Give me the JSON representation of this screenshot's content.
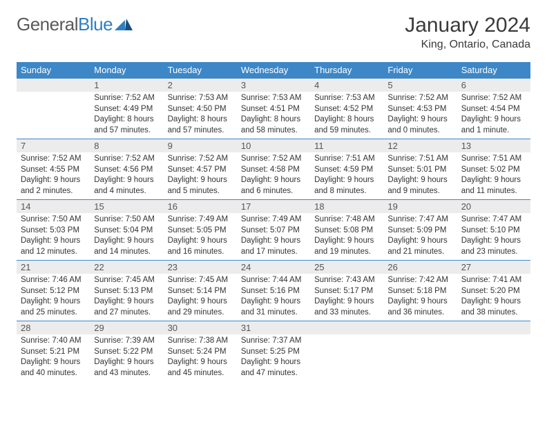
{
  "brand": {
    "part1": "General",
    "part2": "Blue"
  },
  "title": "January 2024",
  "location": "King, Ontario, Canada",
  "colors": {
    "header_bg": "#3d87c7",
    "header_text": "#ffffff",
    "daynum_bg": "#ececec",
    "border": "#3d87c7",
    "text": "#333333"
  },
  "day_headers": [
    "Sunday",
    "Monday",
    "Tuesday",
    "Wednesday",
    "Thursday",
    "Friday",
    "Saturday"
  ],
  "weeks": [
    {
      "nums": [
        "",
        "1",
        "2",
        "3",
        "4",
        "5",
        "6"
      ],
      "cells": [
        {
          "sunrise": "",
          "sunset": "",
          "daylight": ""
        },
        {
          "sunrise": "Sunrise: 7:52 AM",
          "sunset": "Sunset: 4:49 PM",
          "daylight": "Daylight: 8 hours and 57 minutes."
        },
        {
          "sunrise": "Sunrise: 7:53 AM",
          "sunset": "Sunset: 4:50 PM",
          "daylight": "Daylight: 8 hours and 57 minutes."
        },
        {
          "sunrise": "Sunrise: 7:53 AM",
          "sunset": "Sunset: 4:51 PM",
          "daylight": "Daylight: 8 hours and 58 minutes."
        },
        {
          "sunrise": "Sunrise: 7:53 AM",
          "sunset": "Sunset: 4:52 PM",
          "daylight": "Daylight: 8 hours and 59 minutes."
        },
        {
          "sunrise": "Sunrise: 7:52 AM",
          "sunset": "Sunset: 4:53 PM",
          "daylight": "Daylight: 9 hours and 0 minutes."
        },
        {
          "sunrise": "Sunrise: 7:52 AM",
          "sunset": "Sunset: 4:54 PM",
          "daylight": "Daylight: 9 hours and 1 minute."
        }
      ]
    },
    {
      "nums": [
        "7",
        "8",
        "9",
        "10",
        "11",
        "12",
        "13"
      ],
      "cells": [
        {
          "sunrise": "Sunrise: 7:52 AM",
          "sunset": "Sunset: 4:55 PM",
          "daylight": "Daylight: 9 hours and 2 minutes."
        },
        {
          "sunrise": "Sunrise: 7:52 AM",
          "sunset": "Sunset: 4:56 PM",
          "daylight": "Daylight: 9 hours and 4 minutes."
        },
        {
          "sunrise": "Sunrise: 7:52 AM",
          "sunset": "Sunset: 4:57 PM",
          "daylight": "Daylight: 9 hours and 5 minutes."
        },
        {
          "sunrise": "Sunrise: 7:52 AM",
          "sunset": "Sunset: 4:58 PM",
          "daylight": "Daylight: 9 hours and 6 minutes."
        },
        {
          "sunrise": "Sunrise: 7:51 AM",
          "sunset": "Sunset: 4:59 PM",
          "daylight": "Daylight: 9 hours and 8 minutes."
        },
        {
          "sunrise": "Sunrise: 7:51 AM",
          "sunset": "Sunset: 5:01 PM",
          "daylight": "Daylight: 9 hours and 9 minutes."
        },
        {
          "sunrise": "Sunrise: 7:51 AM",
          "sunset": "Sunset: 5:02 PM",
          "daylight": "Daylight: 9 hours and 11 minutes."
        }
      ]
    },
    {
      "nums": [
        "14",
        "15",
        "16",
        "17",
        "18",
        "19",
        "20"
      ],
      "cells": [
        {
          "sunrise": "Sunrise: 7:50 AM",
          "sunset": "Sunset: 5:03 PM",
          "daylight": "Daylight: 9 hours and 12 minutes."
        },
        {
          "sunrise": "Sunrise: 7:50 AM",
          "sunset": "Sunset: 5:04 PM",
          "daylight": "Daylight: 9 hours and 14 minutes."
        },
        {
          "sunrise": "Sunrise: 7:49 AM",
          "sunset": "Sunset: 5:05 PM",
          "daylight": "Daylight: 9 hours and 16 minutes."
        },
        {
          "sunrise": "Sunrise: 7:49 AM",
          "sunset": "Sunset: 5:07 PM",
          "daylight": "Daylight: 9 hours and 17 minutes."
        },
        {
          "sunrise": "Sunrise: 7:48 AM",
          "sunset": "Sunset: 5:08 PM",
          "daylight": "Daylight: 9 hours and 19 minutes."
        },
        {
          "sunrise": "Sunrise: 7:47 AM",
          "sunset": "Sunset: 5:09 PM",
          "daylight": "Daylight: 9 hours and 21 minutes."
        },
        {
          "sunrise": "Sunrise: 7:47 AM",
          "sunset": "Sunset: 5:10 PM",
          "daylight": "Daylight: 9 hours and 23 minutes."
        }
      ]
    },
    {
      "nums": [
        "21",
        "22",
        "23",
        "24",
        "25",
        "26",
        "27"
      ],
      "cells": [
        {
          "sunrise": "Sunrise: 7:46 AM",
          "sunset": "Sunset: 5:12 PM",
          "daylight": "Daylight: 9 hours and 25 minutes."
        },
        {
          "sunrise": "Sunrise: 7:45 AM",
          "sunset": "Sunset: 5:13 PM",
          "daylight": "Daylight: 9 hours and 27 minutes."
        },
        {
          "sunrise": "Sunrise: 7:45 AM",
          "sunset": "Sunset: 5:14 PM",
          "daylight": "Daylight: 9 hours and 29 minutes."
        },
        {
          "sunrise": "Sunrise: 7:44 AM",
          "sunset": "Sunset: 5:16 PM",
          "daylight": "Daylight: 9 hours and 31 minutes."
        },
        {
          "sunrise": "Sunrise: 7:43 AM",
          "sunset": "Sunset: 5:17 PM",
          "daylight": "Daylight: 9 hours and 33 minutes."
        },
        {
          "sunrise": "Sunrise: 7:42 AM",
          "sunset": "Sunset: 5:18 PM",
          "daylight": "Daylight: 9 hours and 36 minutes."
        },
        {
          "sunrise": "Sunrise: 7:41 AM",
          "sunset": "Sunset: 5:20 PM",
          "daylight": "Daylight: 9 hours and 38 minutes."
        }
      ]
    },
    {
      "nums": [
        "28",
        "29",
        "30",
        "31",
        "",
        "",
        ""
      ],
      "cells": [
        {
          "sunrise": "Sunrise: 7:40 AM",
          "sunset": "Sunset: 5:21 PM",
          "daylight": "Daylight: 9 hours and 40 minutes."
        },
        {
          "sunrise": "Sunrise: 7:39 AM",
          "sunset": "Sunset: 5:22 PM",
          "daylight": "Daylight: 9 hours and 43 minutes."
        },
        {
          "sunrise": "Sunrise: 7:38 AM",
          "sunset": "Sunset: 5:24 PM",
          "daylight": "Daylight: 9 hours and 45 minutes."
        },
        {
          "sunrise": "Sunrise: 7:37 AM",
          "sunset": "Sunset: 5:25 PM",
          "daylight": "Daylight: 9 hours and 47 minutes."
        },
        {
          "sunrise": "",
          "sunset": "",
          "daylight": ""
        },
        {
          "sunrise": "",
          "sunset": "",
          "daylight": ""
        },
        {
          "sunrise": "",
          "sunset": "",
          "daylight": ""
        }
      ]
    }
  ]
}
